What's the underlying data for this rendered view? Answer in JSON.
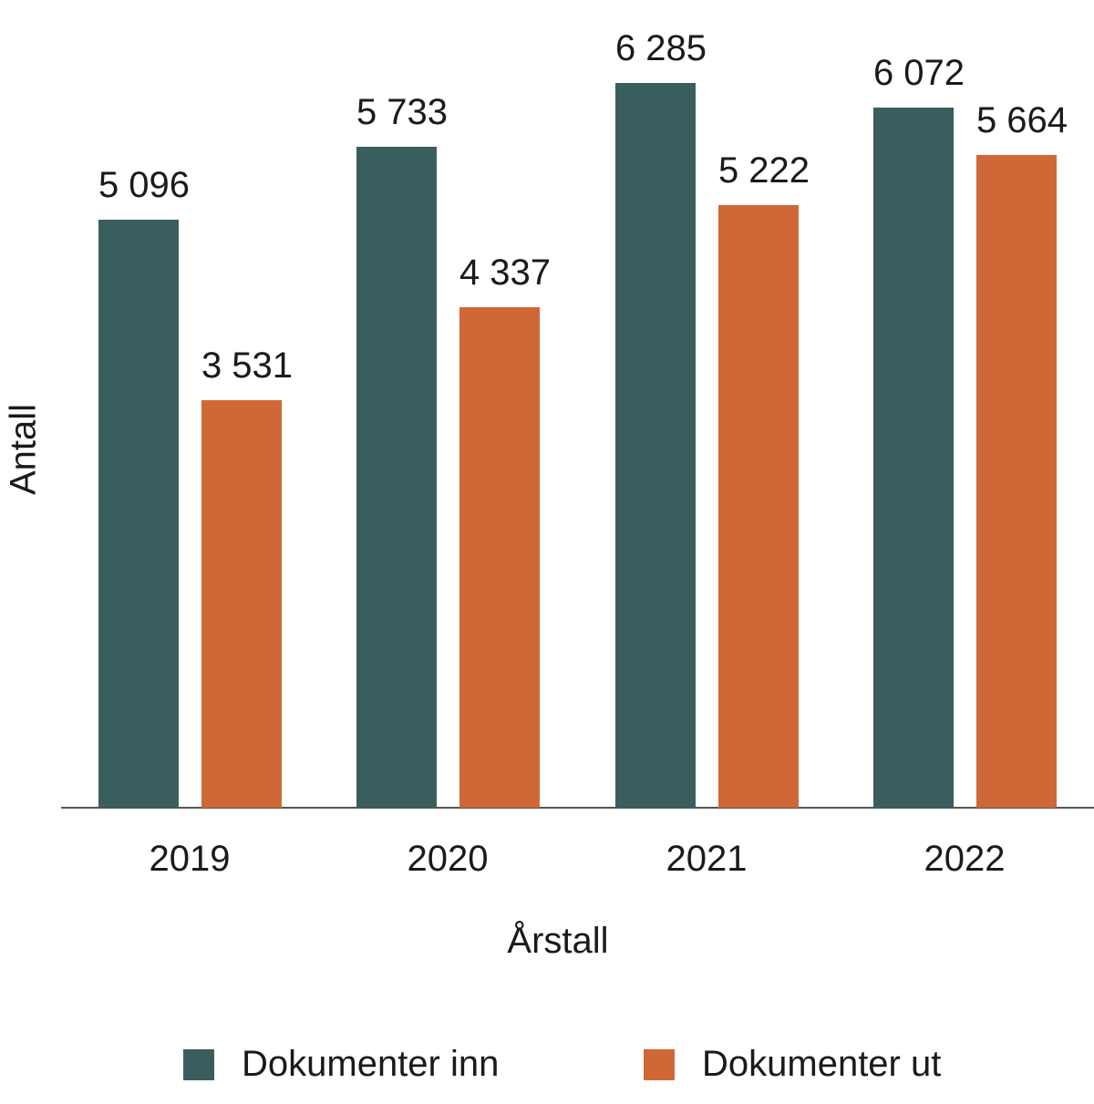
{
  "chart_data": {
    "type": "bar",
    "title": "",
    "xlabel": "Årstall",
    "ylabel": "Antall",
    "categories": [
      "2019",
      "2020",
      "2021",
      "2022"
    ],
    "series": [
      {
        "name": "Dokumenter inn",
        "color": "#3a5e5e",
        "values": [
          5096,
          5733,
          6285,
          6072
        ],
        "labels": [
          "5 096",
          "5 733",
          "6 285",
          "6 072"
        ]
      },
      {
        "name": "Dokumenter ut",
        "color": "#d06736",
        "values": [
          3531,
          4337,
          5222,
          5664
        ],
        "labels": [
          "3 531",
          "4 337",
          "5 222",
          "5 664"
        ]
      }
    ],
    "ylim": [
      0,
      6285
    ],
    "grid": false,
    "legend_position": "bottom"
  }
}
